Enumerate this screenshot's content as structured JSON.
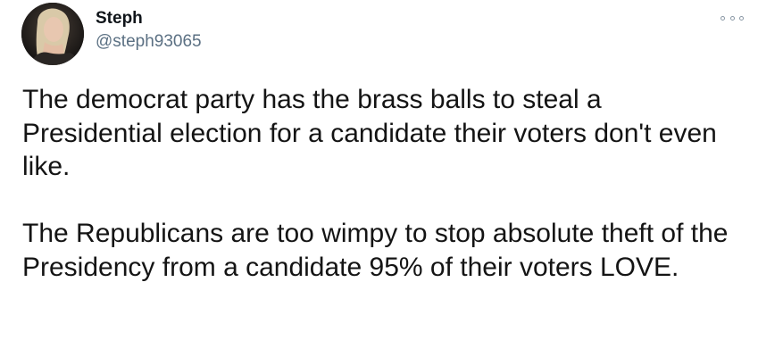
{
  "author": {
    "name": "Steph",
    "handle": "@steph93065",
    "avatar_icon": "user-avatar"
  },
  "menu": {
    "icon": "more-options-icon"
  },
  "tweet": {
    "paragraphs": [
      "The democrat party has the brass balls to steal a Presidential election for a candidate their voters don't even like.",
      "The Republicans are too wimpy to stop absolute theft of the Presidency from a candidate 95% of their voters LOVE."
    ]
  },
  "colors": {
    "text": "#141414",
    "handle": "#5b7083",
    "icon": "#8a98a5"
  }
}
